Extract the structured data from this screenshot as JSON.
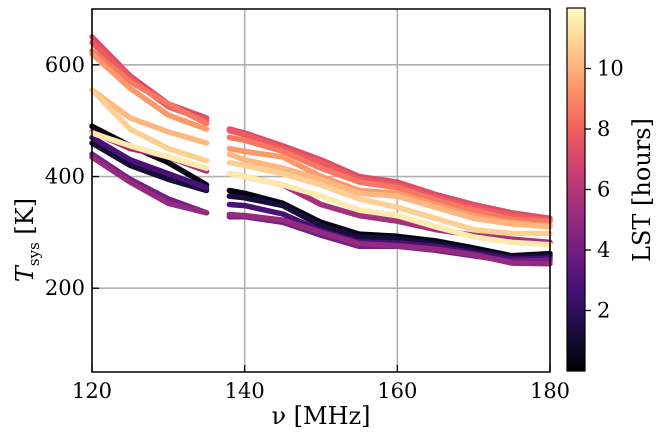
{
  "chart_data": {
    "type": "line",
    "title": "",
    "xlabel": "ν [MHz]",
    "ylabel_symbol": "T",
    "ylabel_subscript": "sys",
    "ylabel_unit": "[K]",
    "xlim": [
      120,
      180
    ],
    "ylim": [
      50,
      700
    ],
    "xticks": [
      120,
      140,
      160,
      180
    ],
    "yticks": [
      200,
      400,
      600
    ],
    "grid": true,
    "gaps_mhz": [
      [
        135,
        138
      ]
    ],
    "colorbar": {
      "label": "LST [hours]",
      "range": [
        0,
        12
      ],
      "ticks": [
        2,
        4,
        6,
        8,
        10
      ],
      "colormap": "magma",
      "stops": [
        "#000004",
        "#180f3e",
        "#451077",
        "#721f81",
        "#9f2f7f",
        "#cd4071",
        "#f1605d",
        "#fd9567",
        "#feca8d",
        "#fcfdbf"
      ]
    },
    "x": [
      120,
      125,
      130,
      135,
      138,
      140,
      145,
      150,
      155,
      160,
      165,
      170,
      175,
      180
    ],
    "series": [
      {
        "lst": 0.3,
        "values": [
          490,
          455,
          425,
          385,
          375,
          370,
          352,
          318,
          297,
          293,
          285,
          272,
          258,
          262
        ]
      },
      {
        "lst": 1.2,
        "values": [
          460,
          420,
          395,
          375,
          365,
          362,
          348,
          312,
          292,
          288,
          280,
          268,
          256,
          258
        ]
      },
      {
        "lst": 2.8,
        "values": [
          470,
          430,
          405,
          380,
          350,
          348,
          333,
          303,
          283,
          281,
          275,
          263,
          252,
          254
        ]
      },
      {
        "lst": 4.0,
        "values": [
          440,
          395,
          360,
          335,
          328,
          328,
          318,
          295,
          275,
          275,
          268,
          258,
          248,
          250
        ]
      },
      {
        "lst": 5.0,
        "values": [
          435,
          390,
          352,
          335,
          332,
          330,
          322,
          300,
          280,
          276,
          270,
          260,
          245,
          244
        ]
      },
      {
        "lst": 5.5,
        "values": [
          480,
          450,
          435,
          410,
          405,
          400,
          385,
          350,
          330,
          320,
          305,
          295,
          288,
          282
        ]
      },
      {
        "lst": 7.2,
        "values": [
          650,
          580,
          530,
          505,
          485,
          478,
          455,
          430,
          400,
          390,
          368,
          350,
          335,
          325
        ]
      },
      {
        "lst": 7.8,
        "values": [
          640,
          575,
          525,
          500,
          482,
          475,
          450,
          425,
          395,
          385,
          362,
          345,
          330,
          322
        ]
      },
      {
        "lst": 8.6,
        "values": [
          625,
          570,
          530,
          495,
          470,
          465,
          445,
          415,
          390,
          380,
          358,
          340,
          323,
          320
        ]
      },
      {
        "lst": 9.4,
        "values": [
          620,
          558,
          510,
          485,
          450,
          445,
          435,
          400,
          375,
          370,
          350,
          330,
          318,
          312
        ]
      },
      {
        "lst": 10.2,
        "values": [
          555,
          505,
          480,
          460,
          440,
          430,
          415,
          395,
          370,
          365,
          345,
          325,
          315,
          310
        ]
      },
      {
        "lst": 10.8,
        "values": [
          555,
          485,
          450,
          428,
          425,
          420,
          405,
          385,
          360,
          345,
          325,
          305,
          298,
          298
        ]
      },
      {
        "lst": 11.5,
        "values": [
          478,
          455,
          435,
          415,
          405,
          400,
          385,
          365,
          340,
          330,
          310,
          292,
          282,
          278
        ]
      }
    ]
  }
}
